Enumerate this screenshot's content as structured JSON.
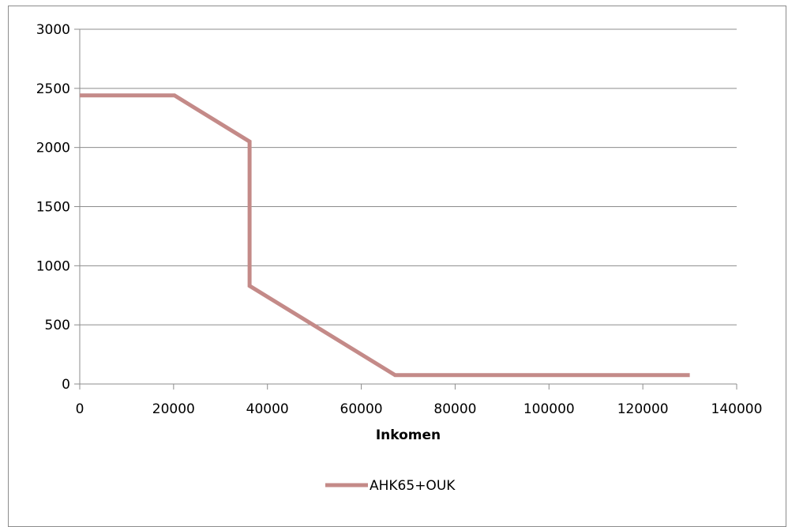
{
  "chart_data": {
    "type": "line",
    "title": "",
    "xlabel": "Inkomen",
    "ylabel": "",
    "xlim": [
      0,
      140000
    ],
    "ylim": [
      0,
      3000
    ],
    "x_ticks": [
      "0",
      "20000",
      "40000",
      "60000",
      "80000",
      "100000",
      "120000",
      "140000"
    ],
    "y_ticks": [
      "0",
      "500",
      "1000",
      "1500",
      "2000",
      "2500",
      "3000"
    ],
    "grid": "horizontal",
    "legend_position": "bottom",
    "colors": {
      "series": "#c48a88",
      "grid": "#8c8c8c",
      "axis": "#8c8c8c"
    },
    "series": [
      {
        "name": "AHK65+OUK",
        "x": [
          0,
          20200,
          36200,
          36200,
          67200,
          130000
        ],
        "y": [
          2440,
          2440,
          2050,
          830,
          75,
          75
        ]
      }
    ]
  }
}
